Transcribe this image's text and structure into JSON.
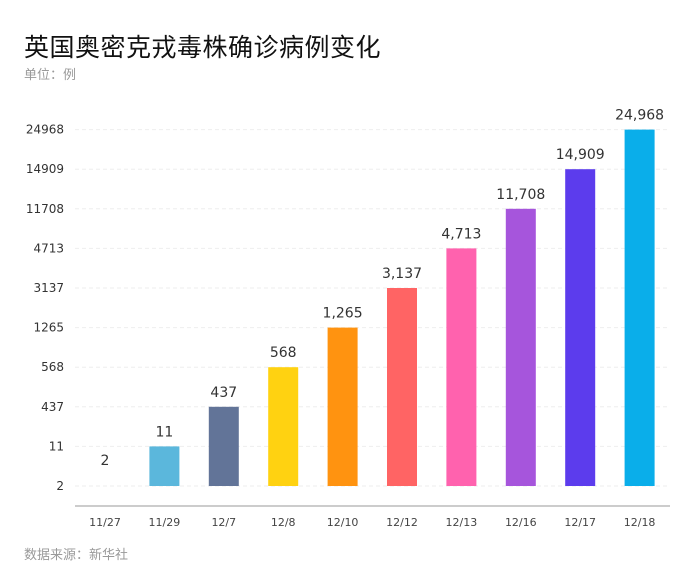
{
  "chart_data": {
    "type": "bar",
    "title": "英国奥密克戎毒株确诊病例变化",
    "subtitle": "单位：例",
    "source": "数据来源：新华社",
    "categories": [
      "11/27",
      "11/29",
      "12/7",
      "12/8",
      "12/10",
      "12/12",
      "12/13",
      "12/16",
      "12/17",
      "12/18"
    ],
    "values": [
      2,
      11,
      437,
      568,
      1265,
      3137,
      4713,
      11708,
      14909,
      24968
    ],
    "data_labels": [
      "2",
      "11",
      "437",
      "568",
      "1,265",
      "3,137",
      "4,713",
      "11,708",
      "14,909",
      "24,968"
    ],
    "y_scale": "categorical (ticks evenly spaced at each data value)",
    "y_ticks": [
      "2",
      "11",
      "437",
      "568",
      "1265",
      "3137",
      "4713",
      "11708",
      "14909",
      "24968"
    ],
    "colors": [
      "#ffffff",
      "#5bb7dc",
      "#627498",
      "#ffd211",
      "#ff9310",
      "#ff6464",
      "#ff62ae",
      "#a655dc",
      "#5c3ced",
      "#0aaeea"
    ],
    "grid": true,
    "legend": "none",
    "xlabel": "",
    "ylabel": ""
  }
}
